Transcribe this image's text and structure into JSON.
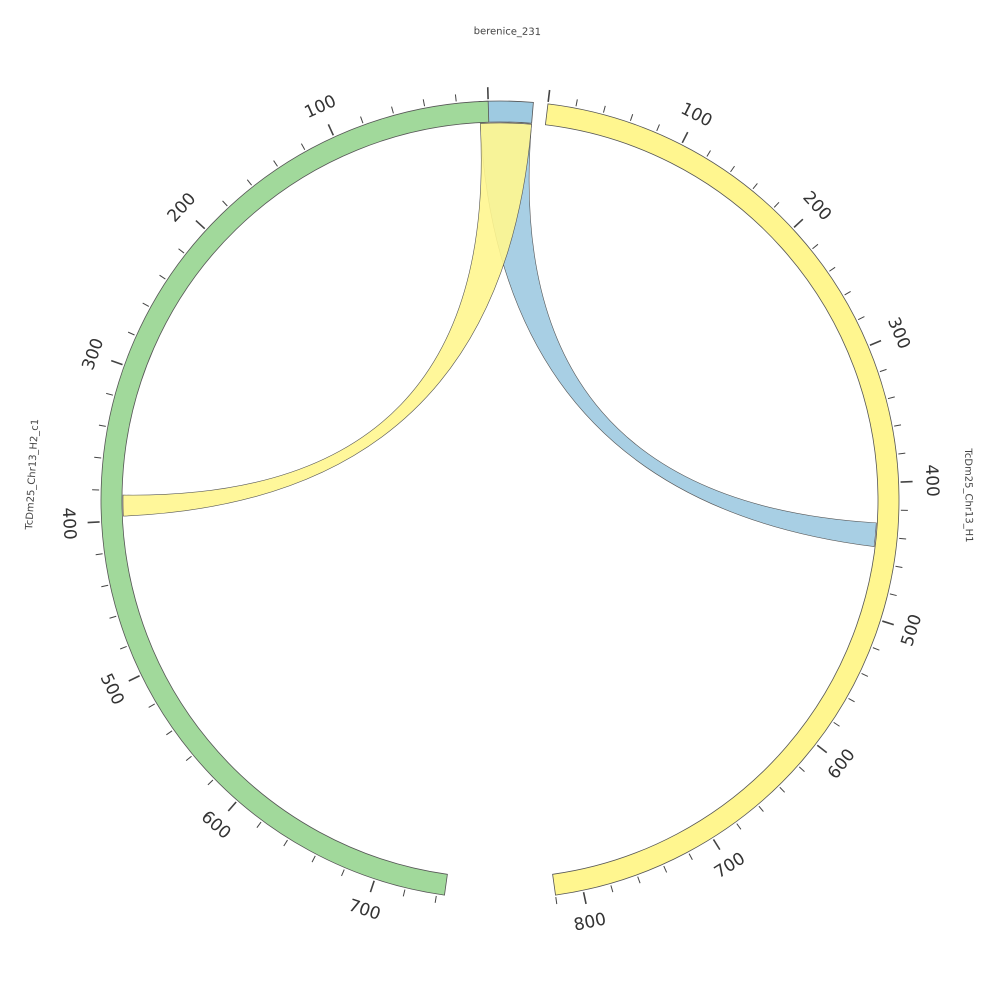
{
  "chart_data": {
    "type": "chord",
    "segments": [
      {
        "name": "berenice_231",
        "length": 40,
        "color": "#9ecae1",
        "start_deg": -3.0,
        "end_deg": 4.8,
        "reversed": false,
        "tick_step": 100,
        "major_every": 100
      },
      {
        "name": "TcDm25_Chr13_H1",
        "length": 820,
        "color": "#fff68f",
        "start_deg": 6.9,
        "end_deg": 172.0,
        "reversed": false,
        "tick_step": 20,
        "major_every": 100
      },
      {
        "name": "TcDm25_Chr13_H2_c1",
        "length": 745,
        "color": "#a1d99b",
        "start_deg": 188.0,
        "end_deg": 358.3,
        "reversed": true,
        "tick_step": 20,
        "major_every": 100
      }
    ],
    "links": [
      {
        "source": "berenice_231",
        "source_range": [
          0,
          40
        ],
        "target": "TcDm25_Chr13_H1",
        "target_range": [
          430,
          448
        ],
        "color": "#9ecae1"
      },
      {
        "source": "berenice_231",
        "source_range": [
          0,
          40
        ],
        "target": "TcDm25_Chr13_H2_c1",
        "target_range": [
          383,
          397
        ],
        "color": "#fff68f"
      }
    ]
  }
}
